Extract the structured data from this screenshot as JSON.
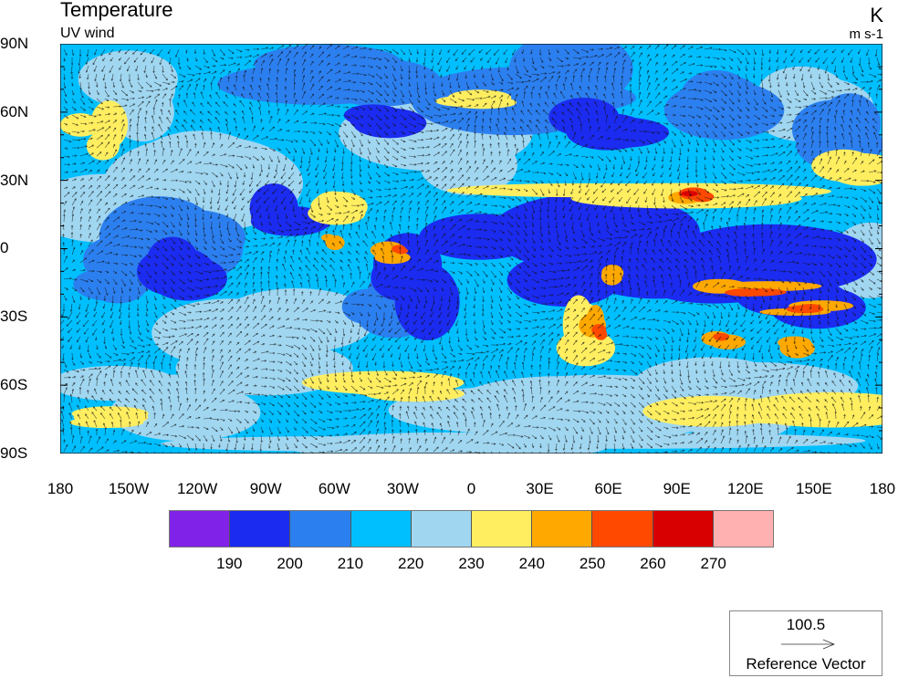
{
  "header": {
    "title": "Temperature",
    "subtitle": "UV wind",
    "units": "K",
    "wind_units": "m s-1"
  },
  "lat_labels": [
    "90N",
    "60N",
    "30N",
    "0",
    "30S",
    "60S",
    "90S"
  ],
  "lon_labels": [
    "180",
    "150W",
    "120W",
    "90W",
    "60W",
    "30W",
    "0",
    "30E",
    "60E",
    "90E",
    "120E",
    "150E",
    "180"
  ],
  "colorbar": {
    "colors": [
      "#8022E8",
      "#1B2BEF",
      "#2C7FEF",
      "#00BFFF",
      "#A0D6F0",
      "#FFEE60",
      "#FFA800",
      "#FF4800",
      "#D80000",
      "#FFB0B0"
    ],
    "labels": [
      "190",
      "200",
      "210",
      "220",
      "230",
      "240",
      "250",
      "260",
      "270"
    ]
  },
  "reference_vector": {
    "value": "100.5",
    "label": "Reference Vector"
  }
}
